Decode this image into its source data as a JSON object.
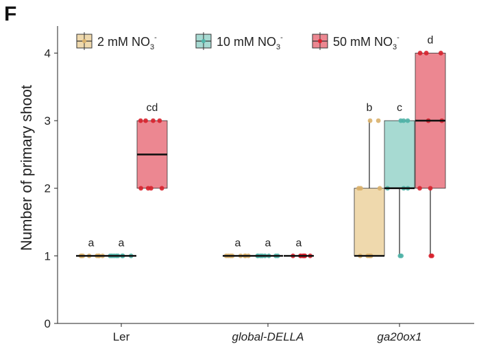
{
  "panel_label": "F",
  "chart_data": {
    "type": "box",
    "title": "",
    "xlabel": "",
    "ylabel": "Number of primary shoot",
    "ylim": [
      0,
      4.4
    ],
    "yticks": [
      0,
      1,
      2,
      3,
      4
    ],
    "grid": false,
    "legend_position": "top",
    "categories": [
      "Ler",
      "global-DELLA",
      "ga20ox1"
    ],
    "category_italic": [
      false,
      true,
      true
    ],
    "series": [
      {
        "name": "2 mM NO",
        "name_sub": "3",
        "name_sup": "-",
        "color": "#EFD9AD",
        "point_color": "#D9B06A"
      },
      {
        "name": "10 mM NO",
        "name_sub": "3",
        "name_sup": "-",
        "color": "#A7DAD2",
        "point_color": "#4FB3A7"
      },
      {
        "name": "50 mM NO",
        "name_sub": "3",
        "name_sup": "-",
        "color": "#EC8791",
        "point_color": "#D8212C"
      }
    ],
    "boxes": [
      {
        "category": "Ler",
        "series": 0,
        "min": 1,
        "q1": 1,
        "median": 1,
        "q3": 1,
        "max": 1,
        "points": [
          1,
          1,
          1,
          1,
          1,
          1,
          1,
          1
        ],
        "letter": "a"
      },
      {
        "category": "Ler",
        "series": 1,
        "min": 1,
        "q1": 1,
        "median": 1,
        "q3": 1,
        "max": 1,
        "points": [
          1,
          1,
          1,
          1,
          1,
          1,
          1,
          1
        ],
        "letter": "a"
      },
      {
        "category": "Ler",
        "series": 2,
        "min": 2,
        "q1": 2,
        "median": 2.5,
        "q3": 3,
        "max": 3,
        "points": [
          2,
          2,
          2,
          2,
          3,
          3,
          3,
          3
        ],
        "letter": "cd"
      },
      {
        "category": "global-DELLA",
        "series": 0,
        "min": 1,
        "q1": 1,
        "median": 1,
        "q3": 1,
        "max": 1,
        "points": [
          1,
          1,
          1,
          1,
          1,
          1,
          1,
          1
        ],
        "letter": "a"
      },
      {
        "category": "global-DELLA",
        "series": 1,
        "min": 1,
        "q1": 1,
        "median": 1,
        "q3": 1,
        "max": 1,
        "points": [
          1,
          1,
          1,
          1,
          1,
          1,
          1,
          1
        ],
        "letter": "a"
      },
      {
        "category": "global-DELLA",
        "series": 2,
        "min": 1,
        "q1": 1,
        "median": 1,
        "q3": 1,
        "max": 1,
        "points": [
          1,
          1,
          1,
          1,
          1,
          1,
          1,
          1
        ],
        "letter": "a"
      },
      {
        "category": "ga20ox1",
        "series": 0,
        "min": 1,
        "q1": 1,
        "median": 1,
        "q3": 2,
        "max": 3,
        "points": [
          1,
          1,
          1,
          1,
          2,
          2,
          2,
          3,
          3
        ],
        "letter": "b"
      },
      {
        "category": "ga20ox1",
        "series": 1,
        "min": 1,
        "q1": 2,
        "median": 2,
        "q3": 3,
        "max": 3,
        "points": [
          1,
          1,
          2,
          2,
          2,
          3,
          3,
          3
        ],
        "letter": "c"
      },
      {
        "category": "ga20ox1",
        "series": 2,
        "min": 1,
        "q1": 2,
        "median": 3,
        "q3": 4,
        "max": 4,
        "points": [
          1,
          1,
          2,
          2,
          3,
          3,
          4,
          4,
          4
        ],
        "letter": "d"
      }
    ]
  }
}
